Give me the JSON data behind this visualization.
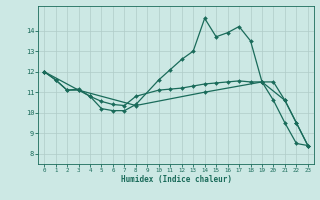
{
  "bg_color": "#cce8e4",
  "line_color": "#1a6b5a",
  "grid_color": "#b0ccc8",
  "xlabel": "Humidex (Indice chaleur)",
  "ylim": [
    7.5,
    15.2
  ],
  "xlim": [
    -0.5,
    23.5
  ],
  "yticks": [
    8,
    9,
    10,
    11,
    12,
    13,
    14
  ],
  "xticks": [
    0,
    1,
    2,
    3,
    4,
    5,
    6,
    7,
    8,
    9,
    10,
    11,
    12,
    13,
    14,
    15,
    16,
    17,
    18,
    19,
    20,
    21,
    22,
    23
  ],
  "line1_x": [
    0,
    1,
    2,
    3,
    4,
    5,
    6,
    7,
    8,
    10,
    11,
    12,
    13,
    14,
    15,
    16,
    17,
    18,
    19,
    20,
    21,
    22,
    23
  ],
  "line1_y": [
    12.0,
    11.6,
    11.1,
    11.1,
    10.8,
    10.2,
    10.1,
    10.1,
    10.4,
    11.6,
    12.1,
    12.6,
    13.0,
    14.6,
    13.7,
    13.9,
    14.2,
    13.5,
    11.5,
    10.6,
    9.5,
    8.5,
    8.4
  ],
  "line2_x": [
    0,
    1,
    2,
    3,
    4,
    5,
    6,
    7,
    8,
    10,
    11,
    12,
    13,
    14,
    15,
    16,
    17,
    18,
    19,
    20,
    21,
    22,
    23
  ],
  "line2_y": [
    12.0,
    11.6,
    11.1,
    11.15,
    10.8,
    10.55,
    10.4,
    10.35,
    10.8,
    11.1,
    11.15,
    11.2,
    11.3,
    11.4,
    11.45,
    11.5,
    11.55,
    11.5,
    11.5,
    11.5,
    10.6,
    9.5,
    8.4
  ],
  "line3_x": [
    0,
    3,
    8,
    14,
    19,
    21,
    22,
    23
  ],
  "line3_y": [
    12.0,
    11.1,
    10.35,
    11.0,
    11.5,
    10.6,
    9.5,
    8.4
  ]
}
